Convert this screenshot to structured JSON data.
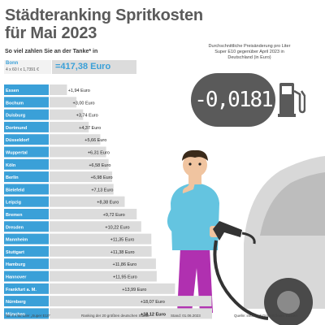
{
  "title_line1": "Städteranking Spritkosten",
  "title_line2": "für Mai 2023",
  "subtitle": "So viel zahlen Sie an der Tanke* in",
  "bonn": {
    "city": "Bonn",
    "formula": "4 x 60 l x 1,7391 €",
    "value": "=417,38 Euro"
  },
  "annotation": "Durchschnittliche Preisänderung pro Liter Super E10 gegenüber April 2023 in Deutschland (in Euro)",
  "counter": "-0,0181",
  "colors": {
    "accent": "#3aa0d8",
    "bar": "#dcdcdc",
    "counter_bg": "#5a5a5a"
  },
  "icons": [
    "fuel-pump-icon",
    "car-silhouette",
    "person-with-fuel-nozzle"
  ],
  "chart_data": {
    "type": "bar",
    "orientation": "horizontal",
    "unit": "Euro",
    "categories": [
      "Essen",
      "Bochum",
      "Duisburg",
      "Dortmund",
      "Düsseldorf",
      "Wuppertal",
      "Köln",
      "Berlin",
      "Bielefeld",
      "Leipzig",
      "Bremen",
      "Dresden",
      "Mannheim",
      "Stuttgart",
      "Hamburg",
      "Hannover",
      "Frankfurt a. M.",
      "Nürnberg",
      "München"
    ],
    "values": [
      1.94,
      3.0,
      3.74,
      4.37,
      5.66,
      6.31,
      6.58,
      6.98,
      7.13,
      8.38,
      9.72,
      10.22,
      11.35,
      11.38,
      11.86,
      11.95,
      13.99,
      18.07,
      18.12
    ],
    "labels": [
      "+1,94 Euro",
      "+3,00 Euro",
      "+3,74 Euro",
      "+4,37 Euro",
      "+5,66 Euro",
      "+6,31 Euro",
      "+6,58 Euro",
      "+6,98 Euro",
      "+7,13 Euro",
      "+8,38 Euro",
      "+9,72 Euro",
      "+10,22 Euro",
      "+11,35 Euro",
      "+11,38 Euro",
      "+11,86 Euro",
      "+11,95 Euro",
      "+13,99 Euro",
      "+18,07 Euro",
      "+18,12 Euro"
    ],
    "highlight_last": true
  },
  "footer": {
    "note": "*für 4 x 60 Liter „Super E10“",
    "ranking": "Ranking der 20 größten deutschen Städte",
    "date": "Stand: 01.06.2023",
    "source": "Quelle: infoRoad GmbH/Clever Tanken"
  }
}
